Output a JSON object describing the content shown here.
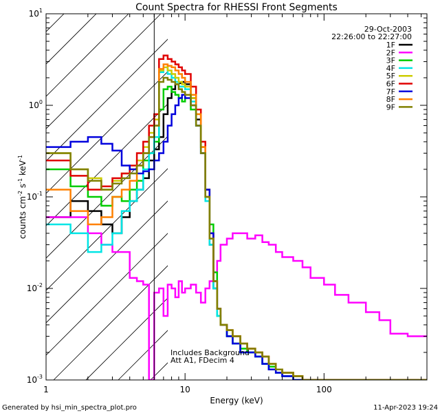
{
  "chart_data": {
    "type": "line",
    "title": "Count Spectra for RHESSI Front Segments",
    "xlabel": "Energy (keV)",
    "ylabel_main": "counts cm",
    "ylabel_sup1": "-2",
    "ylabel_mid": " s",
    "ylabel_sup2": "-1",
    "ylabel_end": " keV",
    "ylabel_sup3": "-1",
    "xscale": "log",
    "yscale": "log",
    "xlim": [
      1,
      550
    ],
    "ylim": [
      0.001,
      10
    ],
    "x_ticks": [
      {
        "v": 1,
        "label": "1"
      },
      {
        "v": 10,
        "label": "10"
      },
      {
        "v": 100,
        "label": "100"
      }
    ],
    "y_ticks": [
      {
        "v": 0.001,
        "base": "10",
        "exp": "-3"
      },
      {
        "v": 0.01,
        "base": "10",
        "exp": "-2"
      },
      {
        "v": 0.1,
        "base": "10",
        "exp": "-1"
      },
      {
        "v": 1,
        "base": "10",
        "exp": "0"
      },
      {
        "v": 10,
        "base": "10",
        "exp": "1"
      }
    ],
    "date": "29-Oct-2003",
    "time_range": "22:26:00 to 22:27:00",
    "attenuator_energy_cut": 6,
    "annotation_line1": "Includes Background",
    "annotation_line2": "Att A1, FDecim 4",
    "footer_left": "Generated by hsi_min_spectra_plot.pro",
    "footer_right": "11-Apr-2023 19:24",
    "legend_position": "top-right",
    "energy_edges": [
      1.0,
      1.5,
      2.0,
      2.5,
      3.0,
      3.5,
      4.0,
      4.5,
      5.0,
      5.5,
      6.0,
      6.5,
      7.0,
      7.5,
      8.0,
      8.5,
      9.0,
      9.5,
      10.0,
      11,
      12,
      13,
      14,
      15,
      16,
      17,
      18,
      20,
      22,
      25,
      28,
      32,
      36,
      40,
      45,
      50,
      60,
      70,
      80,
      100,
      120,
      150,
      200,
      250,
      300,
      400,
      550
    ],
    "series": [
      {
        "name": "1F",
        "color": "#000000",
        "values": [
          0.06,
          0.09,
          0.07,
          0.05,
          0.04,
          0.06,
          0.09,
          0.12,
          0.16,
          0.25,
          0.33,
          0.45,
          0.8,
          1.2,
          1.5,
          1.7,
          1.75,
          1.8,
          1.7,
          1.2,
          0.7,
          0.3,
          0.1,
          0.03,
          0.01,
          0.006,
          0.004,
          0.003,
          0.0025,
          0.002,
          0.002,
          0.0018,
          0.0015,
          0.0013,
          0.0012,
          0.0011,
          0.001,
          0.001,
          0.001,
          0.001,
          0.001,
          0.001,
          0.001,
          0.001,
          0.001,
          0.001
        ]
      },
      {
        "name": "2F",
        "color": "#ff00ff",
        "values": [
          0.06,
          0.06,
          0.04,
          0.03,
          0.025,
          0.025,
          0.013,
          0.012,
          0.011,
          0.001,
          0.009,
          0.01,
          0.005,
          0.011,
          0.01,
          0.008,
          0.012,
          0.009,
          0.01,
          0.011,
          0.009,
          0.007,
          0.01,
          0.012,
          0.015,
          0.02,
          0.03,
          0.035,
          0.04,
          0.04,
          0.035,
          0.038,
          0.032,
          0.03,
          0.025,
          0.022,
          0.02,
          0.017,
          0.013,
          0.011,
          0.0085,
          0.007,
          0.0055,
          0.0045,
          0.0032,
          0.003
        ]
      },
      {
        "name": "3F",
        "color": "#00cc00",
        "values": [
          0.2,
          0.13,
          0.1,
          0.08,
          0.1,
          0.09,
          0.12,
          0.15,
          0.25,
          0.3,
          0.4,
          0.9,
          1.5,
          1.6,
          1.4,
          1.3,
          1.2,
          1.1,
          1.3,
          0.9,
          0.6,
          0.35,
          0.12,
          0.05,
          0.015,
          0.005,
          0.004,
          0.003,
          0.0025,
          0.0022,
          0.002,
          0.0018,
          0.0015,
          0.0014,
          0.0013,
          0.0012,
          0.0011,
          0.001,
          0.001,
          0.001,
          0.001,
          0.001,
          0.001,
          0.001,
          0.001,
          0.001
        ]
      },
      {
        "name": "4F",
        "color": "#00e5e5",
        "values": [
          0.05,
          0.04,
          0.025,
          0.03,
          0.04,
          0.07,
          0.09,
          0.12,
          0.2,
          0.3,
          0.45,
          2.3,
          2.6,
          2.2,
          2.0,
          1.8,
          1.6,
          1.6,
          1.5,
          1.1,
          0.6,
          0.3,
          0.09,
          0.03,
          0.01,
          0.005,
          0.004,
          0.003,
          0.0025,
          0.002,
          0.002,
          0.0018,
          0.0015,
          0.0013,
          0.0012,
          0.0011,
          0.001,
          0.001,
          0.001,
          0.001,
          0.001,
          0.001,
          0.001,
          0.001,
          0.001,
          0.001
        ]
      },
      {
        "name": "5F",
        "color": "#cccc00",
        "values": [
          0.3,
          0.2,
          0.16,
          0.12,
          0.15,
          0.18,
          0.2,
          0.25,
          0.35,
          0.5,
          0.7,
          2.4,
          2.6,
          2.4,
          2.2,
          2.0,
          1.8,
          1.7,
          1.6,
          1.2,
          0.8,
          0.35,
          0.12,
          0.04,
          0.012,
          0.006,
          0.004,
          0.0035,
          0.003,
          0.0025,
          0.0022,
          0.002,
          0.0018,
          0.0015,
          0.0013,
          0.0012,
          0.0011,
          0.001,
          0.001,
          0.001,
          0.001,
          0.001,
          0.001,
          0.001,
          0.001,
          0.001
        ]
      },
      {
        "name": "6F",
        "color": "#e00000",
        "values": [
          0.25,
          0.17,
          0.12,
          0.13,
          0.16,
          0.18,
          0.22,
          0.3,
          0.4,
          0.6,
          0.8,
          3.2,
          3.5,
          3.2,
          3.0,
          2.8,
          2.6,
          2.4,
          2.2,
          1.6,
          0.9,
          0.4,
          0.12,
          0.04,
          0.012,
          0.006,
          0.004,
          0.0035,
          0.003,
          0.0025,
          0.0022,
          0.002,
          0.0018,
          0.0015,
          0.0013,
          0.0012,
          0.0011,
          0.001,
          0.001,
          0.001,
          0.001,
          0.001,
          0.001,
          0.001,
          0.001,
          0.001
        ]
      },
      {
        "name": "7F",
        "color": "#0000dd",
        "values": [
          0.35,
          0.4,
          0.45,
          0.38,
          0.32,
          0.22,
          0.2,
          0.18,
          0.19,
          0.2,
          0.25,
          0.3,
          0.4,
          0.6,
          0.8,
          1.0,
          1.2,
          1.3,
          1.2,
          1.0,
          0.6,
          0.3,
          0.12,
          0.04,
          0.012,
          0.006,
          0.004,
          0.003,
          0.0025,
          0.002,
          0.002,
          0.0018,
          0.0015,
          0.0013,
          0.0012,
          0.0011,
          0.001,
          0.001,
          0.001,
          0.001,
          0.001,
          0.001,
          0.001,
          0.001,
          0.001,
          0.001
        ]
      },
      {
        "name": "8F",
        "color": "#ff8000",
        "values": [
          0.12,
          0.07,
          0.05,
          0.06,
          0.1,
          0.12,
          0.15,
          0.22,
          0.3,
          0.45,
          0.6,
          2.5,
          2.8,
          2.7,
          2.6,
          2.4,
          2.2,
          2.0,
          1.8,
          1.3,
          0.8,
          0.35,
          0.1,
          0.035,
          0.012,
          0.006,
          0.004,
          0.0035,
          0.003,
          0.0025,
          0.0022,
          0.002,
          0.0018,
          0.0015,
          0.0013,
          0.0012,
          0.0011,
          0.001,
          0.001,
          0.001,
          0.001,
          0.001,
          0.001,
          0.001,
          0.001,
          0.001
        ]
      },
      {
        "name": "9F",
        "color": "#808000",
        "values": [
          0.3,
          0.2,
          0.15,
          0.12,
          0.14,
          0.16,
          0.18,
          0.22,
          0.3,
          0.45,
          0.6,
          1.8,
          2.0,
          1.9,
          1.8,
          1.7,
          1.5,
          1.4,
          1.3,
          1.0,
          0.6,
          0.3,
          0.1,
          0.035,
          0.012,
          0.006,
          0.004,
          0.0035,
          0.003,
          0.0025,
          0.0022,
          0.002,
          0.0018,
          0.0015,
          0.0013,
          0.0012,
          0.0011,
          0.001,
          0.001,
          0.001,
          0.001,
          0.001,
          0.001,
          0.001,
          0.001,
          0.001
        ]
      }
    ]
  }
}
